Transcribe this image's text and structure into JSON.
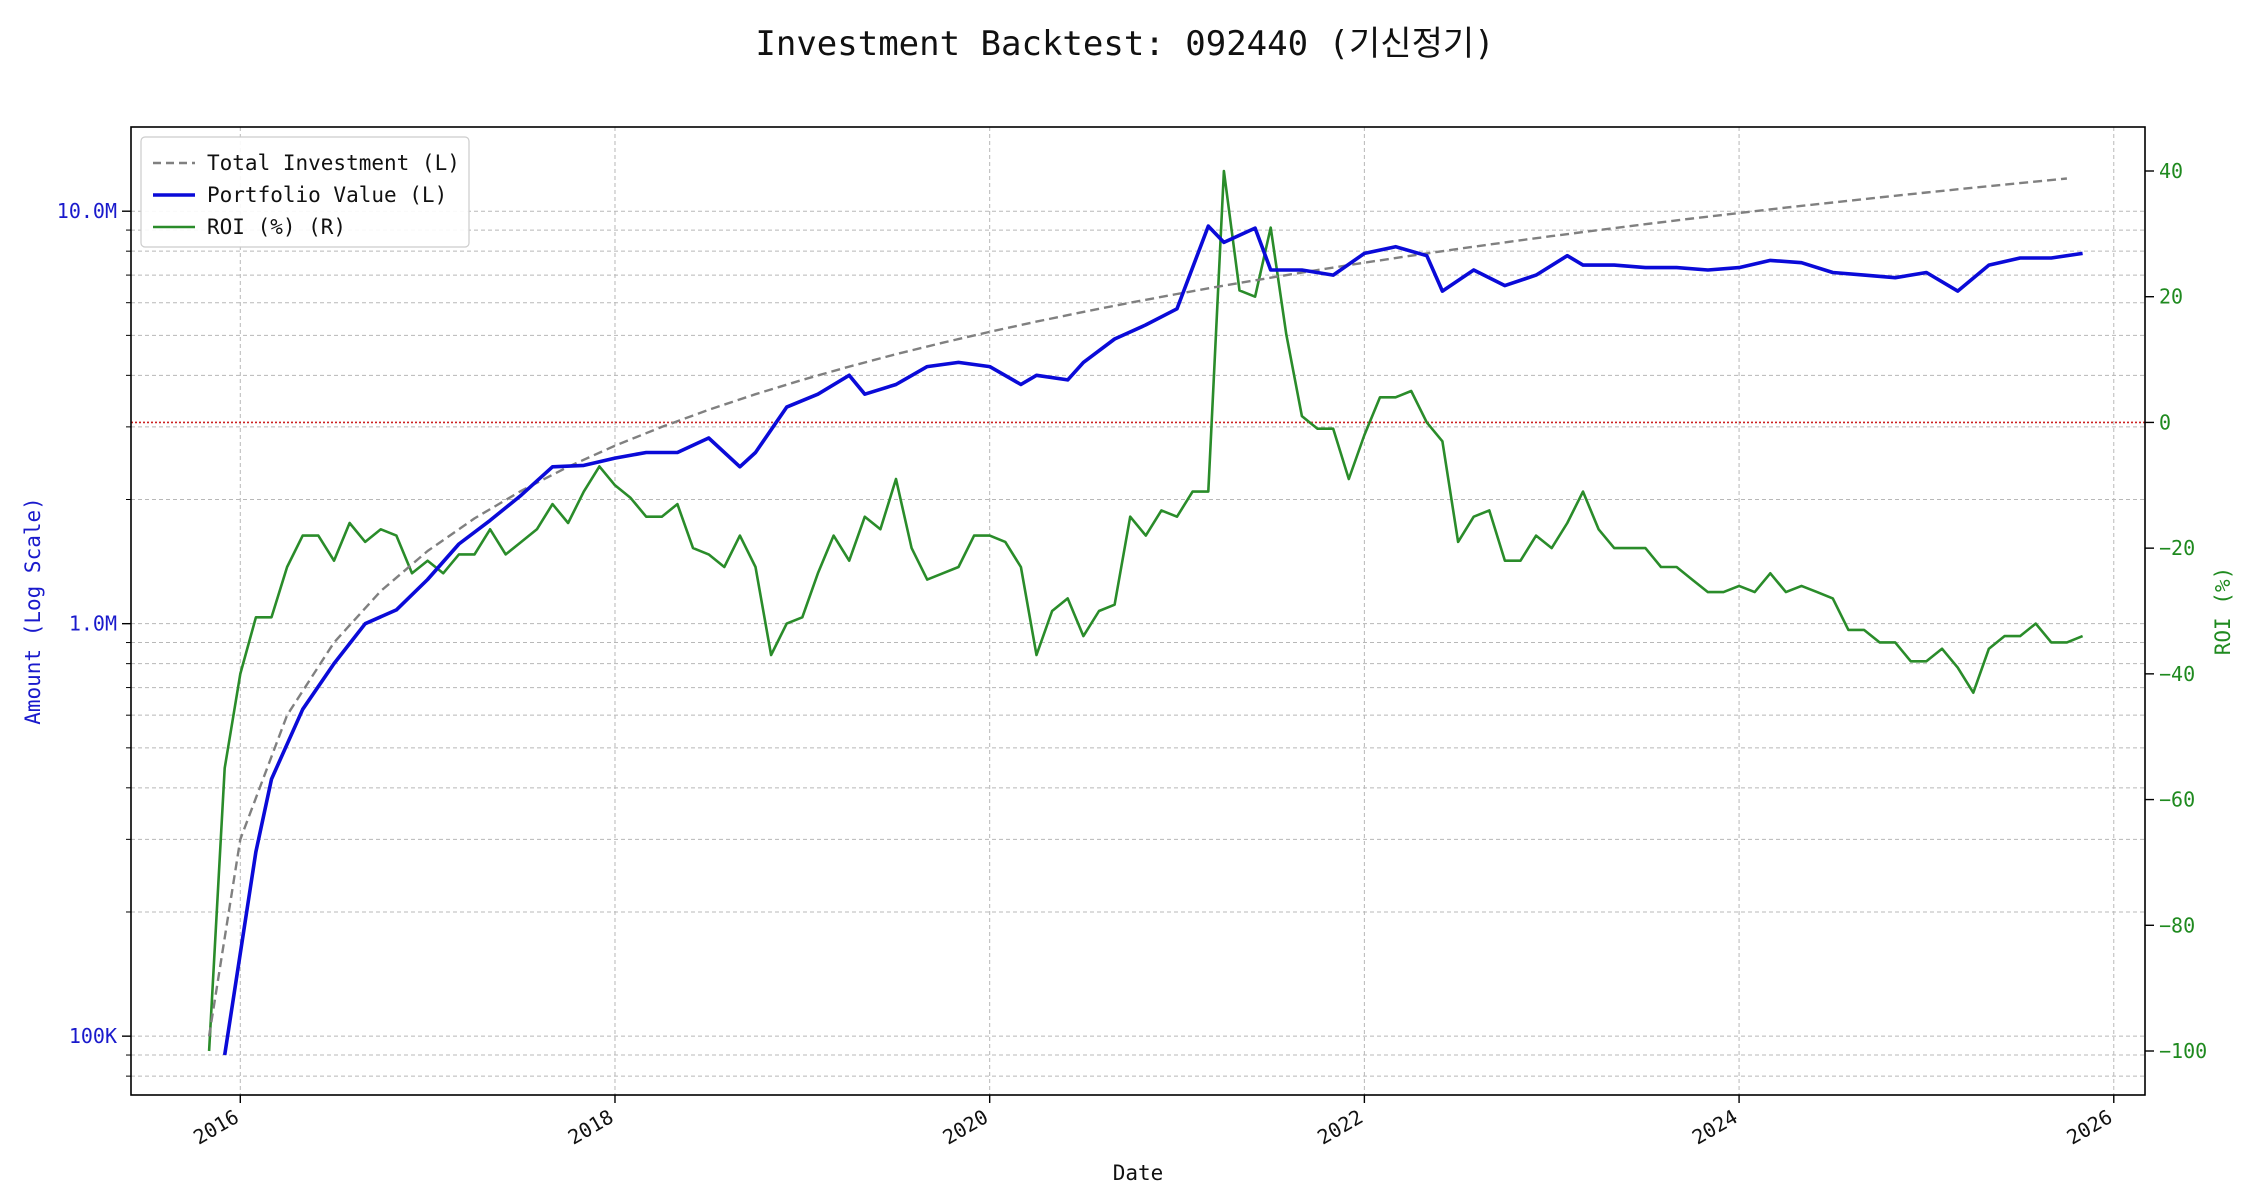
{
  "chart_data": {
    "type": "line",
    "title": "Investment Backtest: 092440 (기신정기)",
    "xlabel": "Date",
    "ylabel_left": "Amount (Log Scale)",
    "ylabel_right": "ROI (%)",
    "left_scale": "log",
    "left_ylim": [
      72000,
      16000000
    ],
    "right_ylim": [
      -107,
      47
    ],
    "xlim": [
      "2015-06",
      "2026-03"
    ],
    "x_ticks": [
      "2016",
      "2018",
      "2020",
      "2022",
      "2024",
      "2026"
    ],
    "left_ticks": [
      {
        "value": 100000,
        "label": "100K"
      },
      {
        "value": 1000000,
        "label": "1.0M"
      },
      {
        "value": 10000000,
        "label": "10.0M"
      }
    ],
    "right_ticks": [
      {
        "value": 40,
        "label": "40"
      },
      {
        "value": 20,
        "label": "20"
      },
      {
        "value": 0,
        "label": "0"
      },
      {
        "value": -20,
        "label": "−20"
      },
      {
        "value": -40,
        "label": "−40"
      },
      {
        "value": -60,
        "label": "−60"
      },
      {
        "value": -80,
        "label": "−80"
      },
      {
        "value": -100,
        "label": "−100"
      }
    ],
    "reference_line": {
      "axis": "right",
      "value": 0,
      "color": "#cc2222"
    },
    "grid": true,
    "legend_position": "top-left",
    "series": [
      {
        "name": "Total Investment (L)",
        "axis": "left",
        "color": "#808080",
        "style": "dashed",
        "x": [
          "2015-11",
          "2016-01",
          "2016-04",
          "2016-07",
          "2016-10",
          "2017-01",
          "2017-04",
          "2017-07",
          "2017-10",
          "2018-01",
          "2018-04",
          "2018-07",
          "2018-10",
          "2019-01",
          "2019-04",
          "2019-07",
          "2019-10",
          "2020-01",
          "2020-04",
          "2020-07",
          "2020-10",
          "2021-01",
          "2021-04",
          "2021-07",
          "2021-10",
          "2022-01",
          "2022-04",
          "2022-07",
          "2022-10",
          "2023-01",
          "2023-04",
          "2023-07",
          "2023-10",
          "2024-01",
          "2024-04",
          "2024-07",
          "2024-10",
          "2025-01",
          "2025-04",
          "2025-07",
          "2025-10"
        ],
        "values": [
          100000,
          300000,
          600000,
          900000,
          1200000,
          1500000,
          1800000,
          2100000,
          2400000,
          2700000,
          3000000,
          3300000,
          3600000,
          3900000,
          4200000,
          4500000,
          4800000,
          5100000,
          5400000,
          5700000,
          6000000,
          6300000,
          6600000,
          6900000,
          7200000,
          7500000,
          7800000,
          8100000,
          8400000,
          8700000,
          9000000,
          9300000,
          9600000,
          9900000,
          10200000,
          10500000,
          10800000,
          11100000,
          11400000,
          11700000,
          12000000
        ]
      },
      {
        "name": "Portfolio Value (L)",
        "axis": "left",
        "color": "#0a0ad8",
        "style": "solid",
        "x": [
          "2015-12",
          "2016-02",
          "2016-03",
          "2016-05",
          "2016-07",
          "2016-09",
          "2016-11",
          "2017-01",
          "2017-03",
          "2017-05",
          "2017-07",
          "2017-09",
          "2017-11",
          "2018-01",
          "2018-03",
          "2018-05",
          "2018-07",
          "2018-09",
          "2018-10",
          "2018-12",
          "2019-02",
          "2019-04",
          "2019-05",
          "2019-07",
          "2019-09",
          "2019-11",
          "2020-01",
          "2020-03",
          "2020-04",
          "2020-06",
          "2020-07",
          "2020-09",
          "2020-11",
          "2021-01",
          "2021-03",
          "2021-04",
          "2021-06",
          "2021-07",
          "2021-09",
          "2021-11",
          "2022-01",
          "2022-03",
          "2022-05",
          "2022-06",
          "2022-08",
          "2022-10",
          "2022-12",
          "2023-02",
          "2023-03",
          "2023-05",
          "2023-07",
          "2023-09",
          "2023-11",
          "2024-01",
          "2024-03",
          "2024-05",
          "2024-07",
          "2024-09",
          "2024-11",
          "2025-01",
          "2025-03",
          "2025-05",
          "2025-07",
          "2025-09",
          "2025-11"
        ],
        "values": [
          90000,
          280000,
          420000,
          620000,
          800000,
          1000000,
          1080000,
          1280000,
          1560000,
          1780000,
          2050000,
          2400000,
          2420000,
          2520000,
          2600000,
          2600000,
          2820000,
          2400000,
          2600000,
          3350000,
          3600000,
          4000000,
          3600000,
          3800000,
          4200000,
          4300000,
          4200000,
          3800000,
          4000000,
          3900000,
          4300000,
          4900000,
          5300000,
          5800000,
          9200000,
          8400000,
          9100000,
          7200000,
          7200000,
          7000000,
          7900000,
          8200000,
          7800000,
          6400000,
          7200000,
          6600000,
          7000000,
          7800000,
          7400000,
          7400000,
          7300000,
          7300000,
          7200000,
          7300000,
          7600000,
          7500000,
          7100000,
          7000000,
          6900000,
          7100000,
          6400000,
          7400000,
          7700000,
          7700000,
          7900000
        ]
      },
      {
        "name": "ROI (%) (R)",
        "axis": "right",
        "color": "#2a8c2a",
        "style": "solid",
        "x": [
          "2015-11",
          "2015-12",
          "2016-01",
          "2016-02",
          "2016-03",
          "2016-04",
          "2016-05",
          "2016-06",
          "2016-07",
          "2016-08",
          "2016-09",
          "2016-10",
          "2016-11",
          "2016-12",
          "2017-01",
          "2017-02",
          "2017-03",
          "2017-04",
          "2017-05",
          "2017-06",
          "2017-07",
          "2017-08",
          "2017-09",
          "2017-10",
          "2017-11",
          "2017-12",
          "2018-01",
          "2018-02",
          "2018-03",
          "2018-04",
          "2018-05",
          "2018-06",
          "2018-07",
          "2018-08",
          "2018-09",
          "2018-10",
          "2018-11",
          "2018-12",
          "2019-01",
          "2019-02",
          "2019-03",
          "2019-04",
          "2019-05",
          "2019-06",
          "2019-07",
          "2019-08",
          "2019-09",
          "2019-10",
          "2019-11",
          "2019-12",
          "2020-01",
          "2020-02",
          "2020-03",
          "2020-04",
          "2020-05",
          "2020-06",
          "2020-07",
          "2020-08",
          "2020-09",
          "2020-10",
          "2020-11",
          "2020-12",
          "2021-01",
          "2021-02",
          "2021-03",
          "2021-04",
          "2021-05",
          "2021-06",
          "2021-07",
          "2021-08",
          "2021-09",
          "2021-10",
          "2021-11",
          "2021-12",
          "2022-01",
          "2022-02",
          "2022-03",
          "2022-04",
          "2022-05",
          "2022-06",
          "2022-07",
          "2022-08",
          "2022-09",
          "2022-10",
          "2022-11",
          "2022-12",
          "2023-01",
          "2023-02",
          "2023-03",
          "2023-04",
          "2023-05",
          "2023-06",
          "2023-07",
          "2023-08",
          "2023-09",
          "2023-10",
          "2023-11",
          "2023-12",
          "2024-01",
          "2024-02",
          "2024-03",
          "2024-04",
          "2024-05",
          "2024-06",
          "2024-07",
          "2024-08",
          "2024-09",
          "2024-10",
          "2024-11",
          "2024-12",
          "2025-01",
          "2025-02",
          "2025-03",
          "2025-04",
          "2025-05",
          "2025-06",
          "2025-07",
          "2025-08",
          "2025-09",
          "2025-10",
          "2025-11"
        ],
        "values": [
          -100,
          -55,
          -40,
          -31,
          -31,
          -23,
          -18,
          -18,
          -22,
          -16,
          -19,
          -17,
          -18,
          -24,
          -22,
          -24,
          -21,
          -21,
          -17,
          -21,
          -19,
          -17,
          -13,
          -16,
          -11,
          -7,
          -10,
          -12,
          -15,
          -15,
          -13,
          -20,
          -21,
          -23,
          -18,
          -23,
          -37,
          -32,
          -31,
          -24,
          -18,
          -22,
          -15,
          -17,
          -9,
          -20,
          -25,
          -24,
          -23,
          -18,
          -18,
          -19,
          -23,
          -37,
          -30,
          -28,
          -34,
          -30,
          -29,
          -15,
          -18,
          -14,
          -15,
          -11,
          -11,
          40,
          21,
          20,
          31,
          14,
          1,
          -1,
          -1,
          -9,
          -2,
          4,
          4,
          5,
          0,
          -3,
          -19,
          -15,
          -14,
          -22,
          -22,
          -18,
          -20,
          -16,
          -11,
          -17,
          -20,
          -20,
          -20,
          -23,
          -23,
          -25,
          -27,
          -27,
          -26,
          -27,
          -24,
          -27,
          -26,
          -27,
          -28,
          -33,
          -33,
          -35,
          -35,
          -38,
          -38,
          -36,
          -39,
          -43,
          -36,
          -34,
          -34,
          -32,
          -35,
          -35,
          -34
        ]
      }
    ]
  }
}
